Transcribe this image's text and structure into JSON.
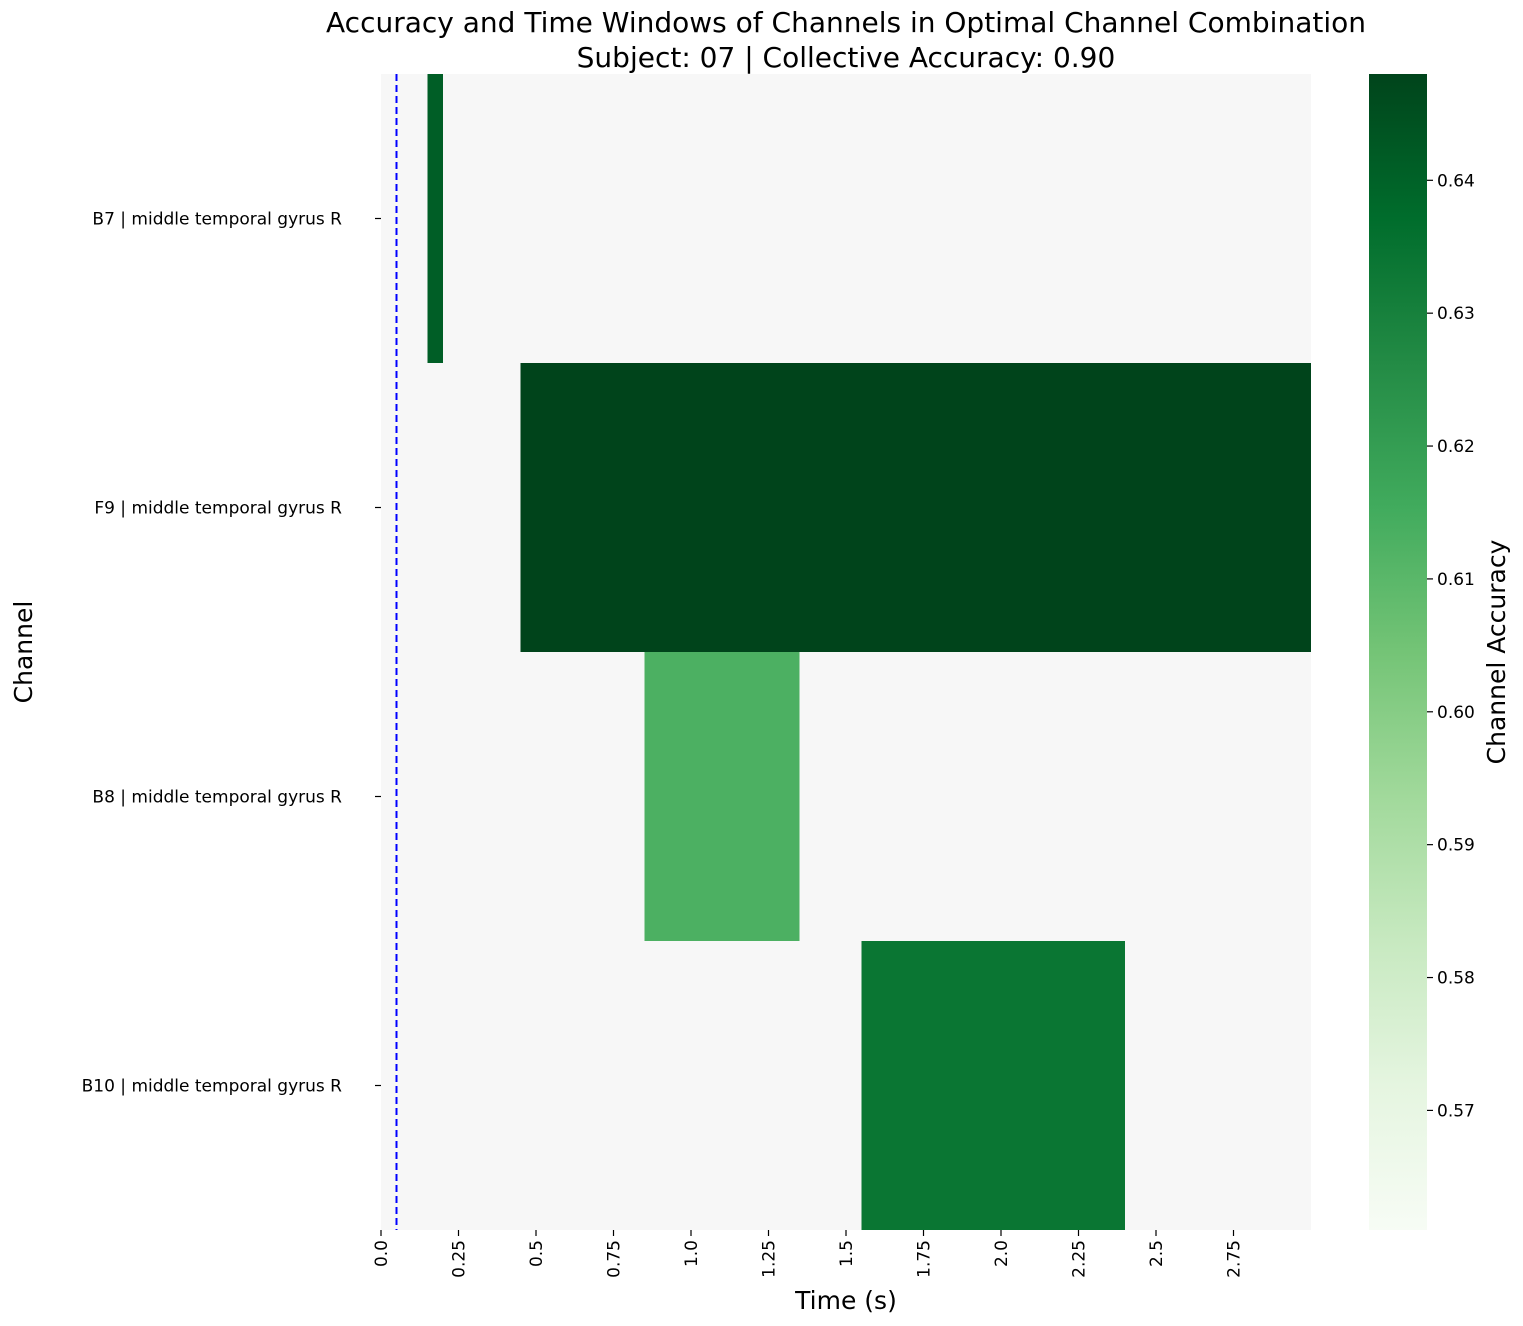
{
  "chart_data": {
    "type": "heatmap",
    "title": "Accuracy and Time Windows of Channels in Optimal Channel Combination",
    "subtitle": "Subject: 07 | Collective Accuracy: 0.90",
    "xlabel": "Time (s)",
    "ylabel": "Channel",
    "colorbar_label": "Channel Accuracy",
    "xlim": [
      0,
      3.0
    ],
    "x_ticks": [
      "0.0",
      "0.25",
      "0.5",
      "0.75",
      "1.0",
      "1.25",
      "1.5",
      "1.75",
      "2.0",
      "2.25",
      "2.5",
      "2.75"
    ],
    "x_tick_values": [
      0,
      0.25,
      0.5,
      0.75,
      1.0,
      1.25,
      1.5,
      1.75,
      2.0,
      2.25,
      2.5,
      2.75
    ],
    "channels": [
      "B7 | middle temporal gyrus R",
      "F9 | middle temporal gyrus R",
      "B8 | middle temporal gyrus R",
      "B10 | middle temporal gyrus R"
    ],
    "windows": [
      {
        "channel": "B7 | middle temporal gyrus R",
        "start": 0.15,
        "end": 0.2,
        "accuracy": 0.641
      },
      {
        "channel": "F9 | middle temporal gyrus R",
        "start": 0.45,
        "end": 3.0,
        "accuracy": 0.648
      },
      {
        "channel": "B8 | middle temporal gyrus R",
        "start": 0.85,
        "end": 1.35,
        "accuracy": 0.613
      },
      {
        "channel": "B10 | middle temporal gyrus R",
        "start": 1.55,
        "end": 2.4,
        "accuracy": 0.634
      }
    ],
    "reference_line": {
      "x": 0.05,
      "style": "dashed",
      "color": "#0000ff"
    },
    "colorbar": {
      "min": 0.561,
      "max": 0.648,
      "ticks": [
        "0.57",
        "0.58",
        "0.59",
        "0.60",
        "0.61",
        "0.62",
        "0.63",
        "0.64"
      ],
      "tick_values": [
        0.57,
        0.58,
        0.59,
        0.6,
        0.61,
        0.62,
        0.63,
        0.64
      ],
      "colormap": "Greens"
    },
    "background_color": "#f7f7f7",
    "grid": false
  }
}
